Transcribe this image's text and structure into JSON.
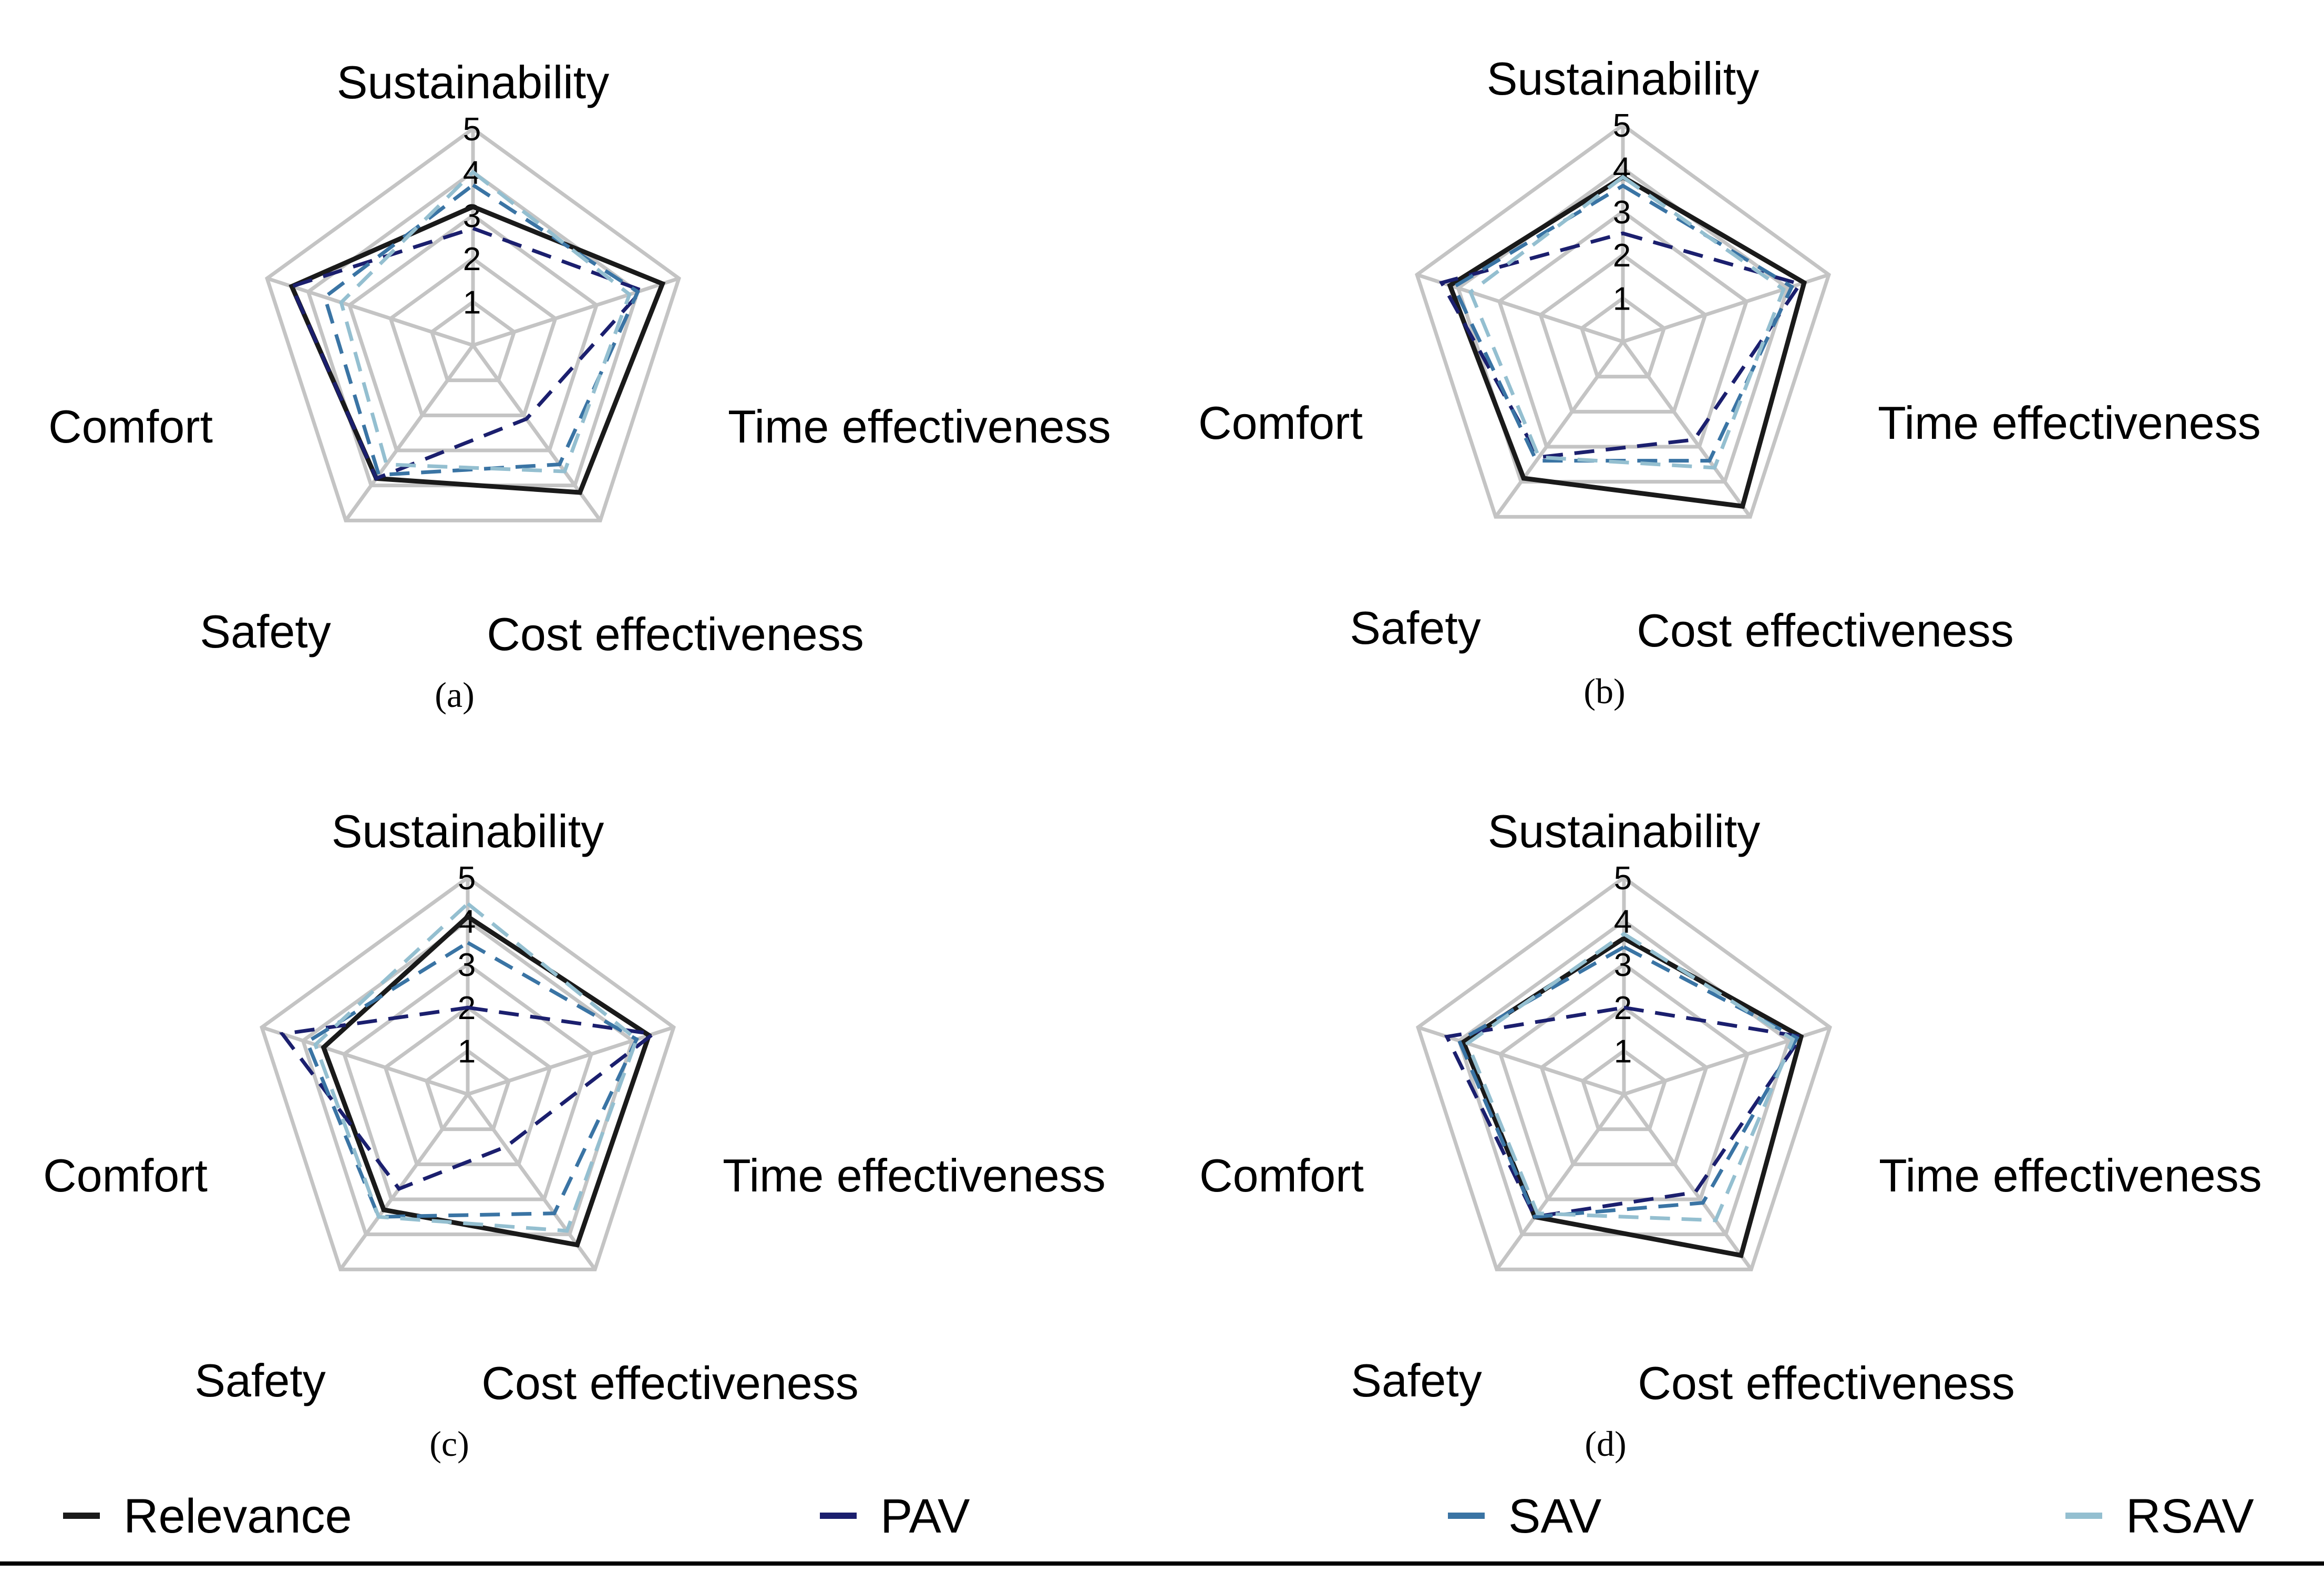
{
  "chart_data": {
    "type": "radar",
    "axes": [
      "Sustainability",
      "Time effectiveness",
      "Cost effectiveness",
      "Safety",
      "Comfort"
    ],
    "rlim": [
      0,
      5
    ],
    "ticks": [
      "1",
      "2",
      "3",
      "4",
      "5"
    ],
    "legend": [
      {
        "name": "Relevance",
        "color": "#1a1a1a",
        "dash": "solid"
      },
      {
        "name": "PAV",
        "color": "#1b1f6e",
        "dash": "dashed"
      },
      {
        "name": "SAV",
        "color": "#3a74a4",
        "dash": "dashed"
      },
      {
        "name": "RSAV",
        "color": "#94bfd0",
        "dash": "dashed"
      }
    ],
    "panels": [
      {
        "label": "(a)",
        "series": [
          {
            "name": "Relevance",
            "values": [
              3.2,
              4.6,
              4.2,
              3.8,
              4.4
            ]
          },
          {
            "name": "PAV",
            "values": [
              2.7,
              4.1,
              2.1,
              3.8,
              4.4
            ]
          },
          {
            "name": "SAV",
            "values": [
              3.7,
              4.0,
              3.4,
              3.7,
              3.6
            ]
          },
          {
            "name": "RSAV",
            "values": [
              4.0,
              3.8,
              3.6,
              3.4,
              3.2
            ]
          }
        ]
      },
      {
        "label": "(b)",
        "series": [
          {
            "name": "Relevance",
            "values": [
              3.8,
              4.4,
              4.7,
              3.9,
              4.2
            ]
          },
          {
            "name": "PAV",
            "values": [
              2.5,
              4.3,
              2.8,
              3.3,
              4.4
            ]
          },
          {
            "name": "SAV",
            "values": [
              3.6,
              4.1,
              3.4,
              3.4,
              4.1
            ]
          },
          {
            "name": "RSAV",
            "values": [
              3.8,
              3.9,
              3.6,
              3.3,
              3.7
            ]
          }
        ]
      },
      {
        "label": "(c)",
        "series": [
          {
            "name": "Relevance",
            "values": [
              4.1,
              4.4,
              4.3,
              3.3,
              3.5
            ]
          },
          {
            "name": "PAV",
            "values": [
              2.0,
              4.5,
              1.5,
              2.7,
              4.5
            ]
          },
          {
            "name": "SAV",
            "values": [
              3.5,
              4.1,
              3.4,
              3.5,
              3.9
            ]
          },
          {
            "name": "RSAV",
            "values": [
              4.4,
              4.1,
              3.9,
              3.5,
              3.7
            ]
          }
        ]
      },
      {
        "label": "(d)",
        "series": [
          {
            "name": "Relevance",
            "values": [
              3.6,
              4.3,
              4.6,
              3.5,
              3.9
            ]
          },
          {
            "name": "PAV",
            "values": [
              2.0,
              4.3,
              2.8,
              3.5,
              4.3
            ]
          },
          {
            "name": "SAV",
            "values": [
              3.4,
              4.2,
              3.1,
              3.5,
              4.0
            ]
          },
          {
            "name": "RSAV",
            "values": [
              3.7,
              4.1,
              3.6,
              3.4,
              3.8
            ]
          }
        ]
      }
    ]
  }
}
